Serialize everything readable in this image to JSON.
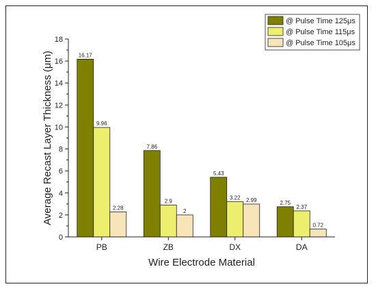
{
  "chart_data": {
    "type": "bar",
    "xlabel": "Wire Electrode Material",
    "ylabel": "Average Recast Layer Thickness (μm)",
    "categories": [
      "PB",
      "ZB",
      "DX",
      "DA"
    ],
    "ylim": [
      0,
      18
    ],
    "yticks": [
      "0",
      "2",
      "4",
      "6",
      "8",
      "10",
      "12",
      "14",
      "16",
      "18"
    ],
    "grid": false,
    "legend_position": "top-right",
    "series": [
      {
        "name": "@ Pulse Time 125μs",
        "color": "#7f7f00",
        "values": [
          16.17,
          7.86,
          5.43,
          2.75
        ],
        "labels": [
          "16.17",
          "7.86",
          "5.43",
          "2.75"
        ]
      },
      {
        "name": "@ Pulse Time 115μs",
        "color": "#eded6e",
        "values": [
          9.96,
          2.9,
          3.22,
          2.37
        ],
        "labels": [
          "9.96",
          "2.9",
          "3.22",
          "2.37"
        ]
      },
      {
        "name": "@ Pulse Time 105μs",
        "color": "#f7e4b8",
        "values": [
          2.28,
          2.0,
          2.99,
          0.72
        ],
        "labels": [
          "2.28",
          "2",
          "2.99",
          "0.72"
        ]
      }
    ]
  }
}
